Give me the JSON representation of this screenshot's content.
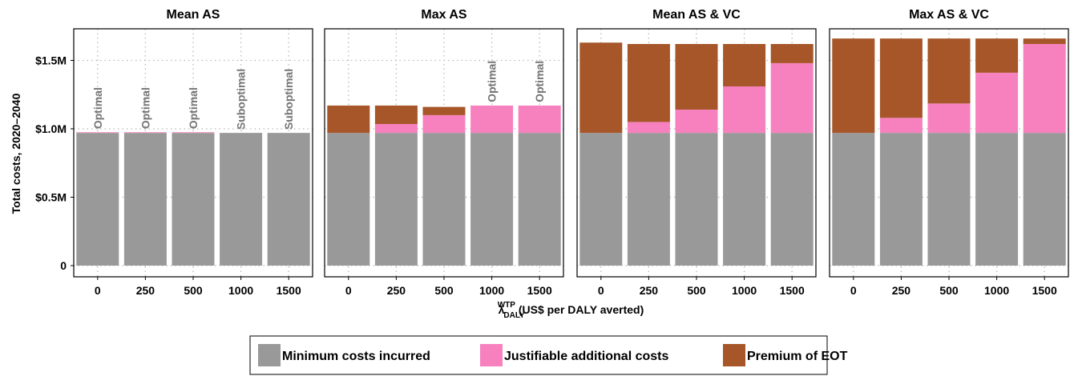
{
  "chart_data": {
    "type": "bar",
    "stacked": true,
    "ylabel": "Total costs, 2020–2040",
    "xlabel": {
      "lambda": "λ",
      "sup": "WTP",
      "sub": "DALY",
      "rest": " (US$ per DALY averted)"
    },
    "ylim": [
      0,
      1.75
    ],
    "y_unit": "million US$",
    "y_ticks": [
      0,
      0.5,
      1.0,
      1.5
    ],
    "y_tick_labels": [
      "0",
      "$0.5M",
      "$1.0M",
      "$1.5M"
    ],
    "categories": [
      "0",
      "250",
      "500",
      "1000",
      "1500"
    ],
    "grid": true,
    "series": [
      {
        "name": "Minimum costs incurred",
        "color": "#999999"
      },
      {
        "name": "Justifiable additional costs",
        "color": "#f781bf"
      },
      {
        "name": "Premium of EOT",
        "color": "#a65628"
      }
    ],
    "legend": {
      "position": "bottom"
    },
    "panels": [
      {
        "title": "Mean AS",
        "minimum": [
          0.97,
          0.97,
          0.97,
          0.97,
          0.97
        ],
        "justifiable": [
          0.005,
          0.005,
          0.005,
          0,
          0
        ],
        "premium": [
          0,
          0,
          0,
          0,
          0
        ],
        "annotations": [
          "Optimal",
          "Optimal",
          "Optimal",
          "Suboptimal",
          "Suboptimal"
        ]
      },
      {
        "title": "Max AS",
        "minimum": [
          0.97,
          0.97,
          0.97,
          0.97,
          0.97
        ],
        "justifiable": [
          0,
          0.065,
          0.13,
          0.2,
          0.2
        ],
        "premium": [
          0.2,
          0.135,
          0.06,
          0,
          0
        ],
        "annotations": [
          "",
          "",
          "",
          "Optimal",
          "Optimal"
        ]
      },
      {
        "title": "Mean AS & VC",
        "minimum": [
          0.97,
          0.97,
          0.97,
          0.97,
          0.97
        ],
        "justifiable": [
          0,
          0.08,
          0.17,
          0.34,
          0.51
        ],
        "premium": [
          0.66,
          0.57,
          0.48,
          0.31,
          0.14
        ],
        "annotations": [
          "",
          "",
          "",
          "",
          ""
        ]
      },
      {
        "title": "Max AS & VC",
        "minimum": [
          0.97,
          0.97,
          0.97,
          0.97,
          0.97
        ],
        "justifiable": [
          0,
          0.11,
          0.215,
          0.44,
          0.65
        ],
        "premium": [
          0.69,
          0.58,
          0.475,
          0.25,
          0.04
        ],
        "annotations": [
          "",
          "",
          "",
          "",
          ""
        ]
      }
    ]
  }
}
